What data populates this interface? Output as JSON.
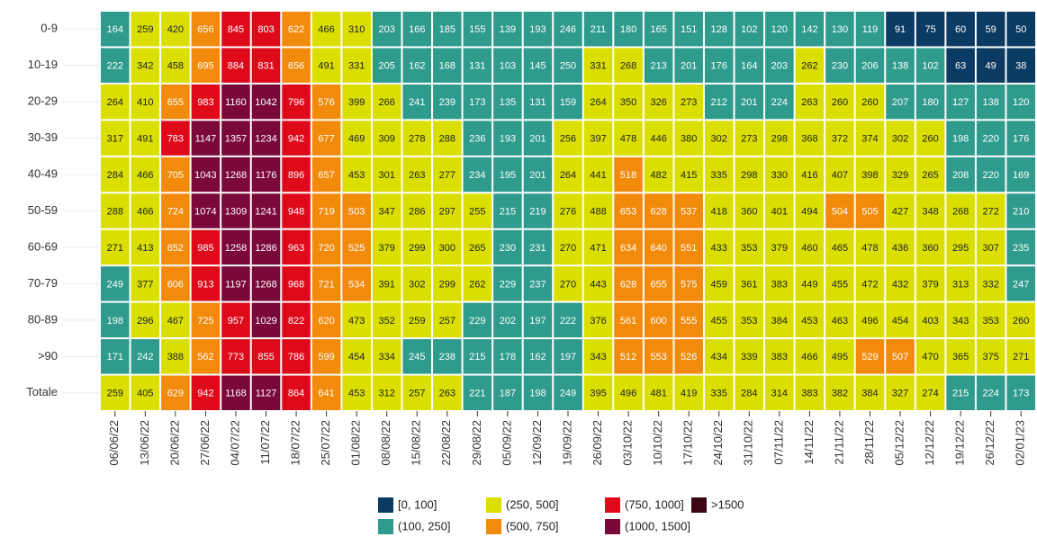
{
  "chart_data": {
    "type": "heatmap",
    "columns": [
      "06/06/22",
      "13/06/22",
      "20/06/22",
      "27/06/22",
      "04/07/22",
      "11/07/22",
      "18/07/22",
      "25/07/22",
      "01/08/22",
      "08/08/22",
      "15/08/22",
      "22/08/22",
      "29/08/22",
      "05/09/22",
      "12/09/22",
      "19/09/22",
      "26/09/22",
      "03/10/22",
      "10/10/22",
      "17/10/22",
      "24/10/22",
      "31/10/22",
      "07/11/22",
      "14/11/22",
      "21/11/22",
      "28/11/22",
      "05/12/22",
      "12/12/22",
      "19/12/22",
      "26/12/22",
      "02/01/23"
    ],
    "rows": [
      "0-9",
      "10-19",
      "20-29",
      "30-39",
      "40-49",
      "50-59",
      "60-69",
      "70-79",
      "80-89",
      ">90",
      "Totale"
    ],
    "values": [
      [
        164,
        259,
        420,
        656,
        845,
        803,
        622,
        466,
        310,
        203,
        166,
        185,
        155,
        139,
        193,
        246,
        211,
        180,
        165,
        151,
        128,
        102,
        120,
        142,
        130,
        119,
        91,
        75,
        60,
        59,
        50
      ],
      [
        222,
        342,
        458,
        695,
        884,
        831,
        656,
        491,
        331,
        205,
        162,
        168,
        131,
        103,
        145,
        250,
        331,
        268,
        213,
        201,
        176,
        164,
        203,
        262,
        230,
        206,
        138,
        102,
        63,
        49,
        38
      ],
      [
        264,
        410,
        655,
        983,
        1160,
        1042,
        796,
        576,
        399,
        266,
        241,
        239,
        173,
        135,
        131,
        159,
        264,
        350,
        326,
        273,
        212,
        201,
        224,
        263,
        260,
        260,
        207,
        180,
        127,
        138,
        120
      ],
      [
        317,
        491,
        783,
        1147,
        1357,
        1234,
        942,
        677,
        469,
        309,
        278,
        288,
        236,
        193,
        201,
        256,
        397,
        478,
        446,
        380,
        302,
        273,
        298,
        368,
        372,
        374,
        302,
        260,
        198,
        220,
        176
      ],
      [
        284,
        466,
        705,
        1043,
        1268,
        1176,
        896,
        657,
        453,
        301,
        263,
        277,
        234,
        195,
        201,
        264,
        441,
        518,
        482,
        415,
        335,
        298,
        330,
        416,
        407,
        398,
        329,
        265,
        208,
        220,
        169
      ],
      [
        288,
        466,
        724,
        1074,
        1309,
        1241,
        948,
        719,
        503,
        347,
        286,
        297,
        255,
        215,
        219,
        276,
        488,
        653,
        628,
        537,
        418,
        360,
        401,
        494,
        504,
        505,
        427,
        348,
        268,
        272,
        210
      ],
      [
        271,
        413,
        652,
        985,
        1258,
        1286,
        963,
        720,
        525,
        379,
        299,
        300,
        265,
        230,
        231,
        270,
        471,
        634,
        640,
        551,
        433,
        353,
        379,
        460,
        465,
        478,
        436,
        360,
        295,
        307,
        235
      ],
      [
        249,
        377,
        606,
        913,
        1197,
        1268,
        968,
        721,
        534,
        391,
        302,
        299,
        262,
        229,
        237,
        270,
        443,
        628,
        655,
        575,
        459,
        361,
        383,
        449,
        455,
        472,
        432,
        379,
        313,
        332,
        247
      ],
      [
        198,
        296,
        467,
        725,
        957,
        1029,
        822,
        620,
        473,
        352,
        259,
        257,
        229,
        202,
        197,
        222,
        376,
        561,
        600,
        555,
        455,
        353,
        384,
        453,
        463,
        496,
        454,
        403,
        343,
        353,
        260
      ],
      [
        171,
        242,
        388,
        562,
        773,
        855,
        786,
        599,
        454,
        334,
        245,
        238,
        215,
        178,
        162,
        197,
        343,
        512,
        553,
        526,
        434,
        339,
        383,
        466,
        495,
        529,
        507,
        470,
        365,
        375,
        271
      ],
      [
        259,
        405,
        629,
        942,
        1168,
        1127,
        864,
        641,
        453,
        312,
        257,
        263,
        221,
        187,
        198,
        249,
        395,
        496,
        481,
        419,
        335,
        284,
        314,
        383,
        382,
        384,
        327,
        274,
        215,
        224,
        173
      ]
    ],
    "bins": [
      {
        "label": "[0, 100]",
        "max": 100,
        "color": "#0b3a63",
        "text_color": "#ffffff"
      },
      {
        "label": "(100, 250]",
        "max": 250,
        "color": "#2e9b8d",
        "text_color": "#ffffff"
      },
      {
        "label": "(250, 500]",
        "max": 500,
        "color": "#dbdf00",
        "text_color": "#222222"
      },
      {
        "label": "(500, 750]",
        "max": 750,
        "color": "#f28a0c",
        "text_color": "#ffffff"
      },
      {
        "label": "(750, 1000]",
        "max": 1000,
        "color": "#de0a1a",
        "text_color": "#ffffff"
      },
      {
        "label": "(1000, 1500]",
        "max": 1500,
        "color": "#7a0838",
        "text_color": "#ffffff"
      },
      {
        "label": ">1500",
        "color": "#3b0714",
        "text_color": "#ffffff"
      }
    ]
  }
}
